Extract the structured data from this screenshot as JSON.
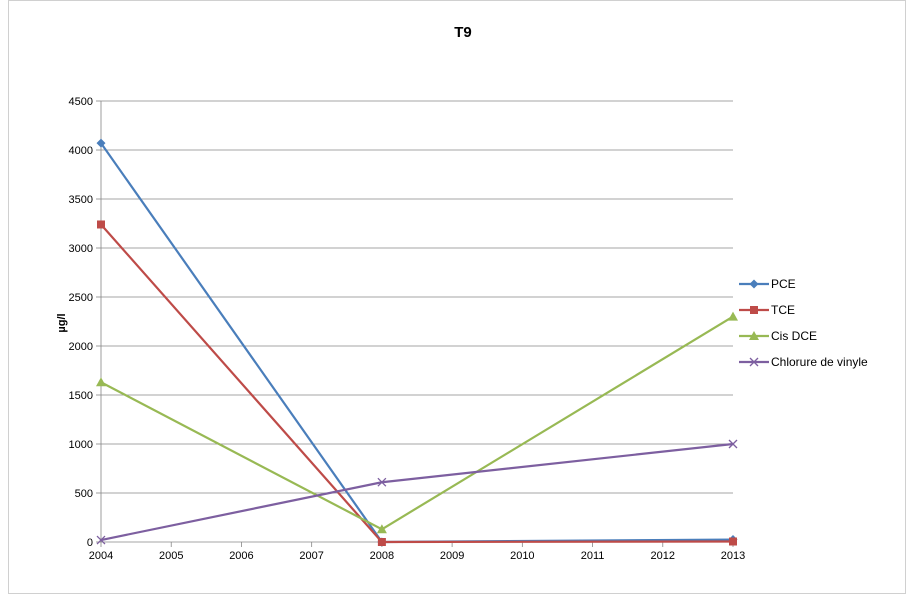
{
  "chart_data": {
    "type": "line",
    "title": "T9",
    "xlabel": "",
    "ylabel": "µg/l",
    "x": [
      2004,
      2005,
      2006,
      2007,
      2008,
      2009,
      2010,
      2011,
      2012,
      2013
    ],
    "xlim": [
      2004,
      2013
    ],
    "ylim": [
      0,
      4500
    ],
    "yticks": [
      0,
      500,
      1000,
      1500,
      2000,
      2500,
      3000,
      3500,
      4000,
      4500
    ],
    "grid": true,
    "legend_position": "right",
    "series": [
      {
        "name": "PCE",
        "color": "#4a7ebb",
        "marker": "diamond",
        "points": [
          [
            2004,
            4070
          ],
          [
            2008,
            0
          ],
          [
            2013,
            25
          ]
        ]
      },
      {
        "name": "TCE",
        "color": "#be4b48",
        "marker": "square",
        "points": [
          [
            2004,
            3240
          ],
          [
            2008,
            0
          ],
          [
            2013,
            5
          ]
        ]
      },
      {
        "name": "Cis DCE",
        "color": "#98b954",
        "marker": "triangle",
        "points": [
          [
            2004,
            1630
          ],
          [
            2008,
            130
          ],
          [
            2013,
            2300
          ]
        ]
      },
      {
        "name": "Chlorure de vinyle",
        "color": "#7d5fa0",
        "marker": "x",
        "points": [
          [
            2004,
            20
          ],
          [
            2008,
            610
          ],
          [
            2013,
            1000
          ]
        ]
      }
    ]
  }
}
